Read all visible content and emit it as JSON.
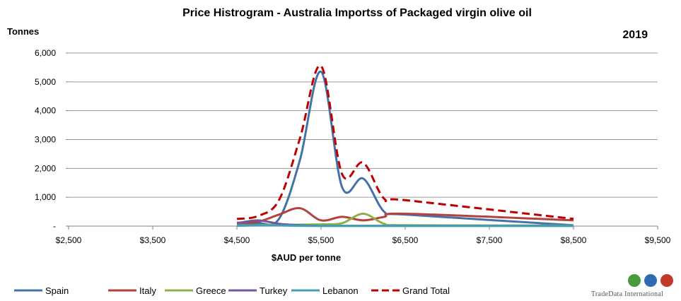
{
  "chart_data": {
    "type": "line",
    "title": "Price Histrogram - Australia Importss of Packaged virgin olive oil",
    "year_label": "2019",
    "ylabel": "Tonnes",
    "xlabel": "$AUD  per tonne",
    "xlim": [
      2500,
      9500
    ],
    "ylim": [
      0,
      6000
    ],
    "x_ticks": [
      2500,
      3500,
      4500,
      5500,
      6500,
      7500,
      8500,
      9500
    ],
    "x_tick_labels": [
      "$2,500",
      "$3,500",
      "$4,500",
      "$5,500",
      "$6,500",
      "$7,500",
      "$8,500",
      "$9,500"
    ],
    "y_ticks": [
      0,
      1000,
      2000,
      3000,
      4000,
      5000,
      6000
    ],
    "y_tick_labels": [
      "-",
      "1,000",
      "2,000",
      "3,000",
      "4,000",
      "5,000",
      "6,000"
    ],
    "grid": "horizontal",
    "legend_position": "bottom",
    "series": [
      {
        "name": "Spain",
        "color": "#4472A8",
        "dash": false,
        "x": [
          4500,
          4750,
          5000,
          5250,
          5500,
          5750,
          6000,
          6250,
          6500,
          8500
        ],
        "y": [
          50,
          100,
          250,
          2300,
          5350,
          1350,
          1650,
          500,
          400,
          30
        ]
      },
      {
        "name": "Italy",
        "color": "#B5413E",
        "dash": false,
        "x": [
          4500,
          4750,
          5000,
          5250,
          5500,
          5750,
          6000,
          6250,
          6500,
          8500
        ],
        "y": [
          120,
          150,
          400,
          620,
          200,
          320,
          200,
          320,
          430,
          200
        ]
      },
      {
        "name": "Greece",
        "color": "#8CB04A",
        "dash": false,
        "x": [
          4500,
          4750,
          5000,
          5250,
          5500,
          5750,
          6000,
          6250,
          6500,
          8500
        ],
        "y": [
          20,
          30,
          50,
          50,
          60,
          100,
          430,
          80,
          30,
          20
        ]
      },
      {
        "name": "Turkey",
        "color": "#73569B",
        "dash": false,
        "x": [
          4500,
          4750,
          5000,
          5250,
          5500,
          5750,
          6000,
          6250,
          6500,
          8500
        ],
        "y": [
          100,
          200,
          80,
          30,
          10,
          10,
          10,
          10,
          10,
          10
        ]
      },
      {
        "name": "Lebanon",
        "color": "#3FA0B8",
        "dash": false,
        "x": [
          4500,
          4750,
          5000,
          5250,
          5500,
          5750,
          6000,
          6250,
          6500,
          8500
        ],
        "y": [
          10,
          20,
          20,
          10,
          5,
          5,
          5,
          5,
          5,
          5
        ]
      },
      {
        "name": "Grand Total",
        "color": "#C00000",
        "dash": true,
        "x": [
          4500,
          4750,
          5000,
          5250,
          5500,
          5750,
          6000,
          6250,
          6500,
          8500
        ],
        "y": [
          250,
          350,
          900,
          3050,
          5550,
          1800,
          2200,
          950,
          900,
          250
        ]
      }
    ]
  },
  "logo": {
    "name": "TradeData International",
    "colors": [
      "#4A9B3C",
      "#2E6BB0",
      "#C0392B"
    ]
  }
}
